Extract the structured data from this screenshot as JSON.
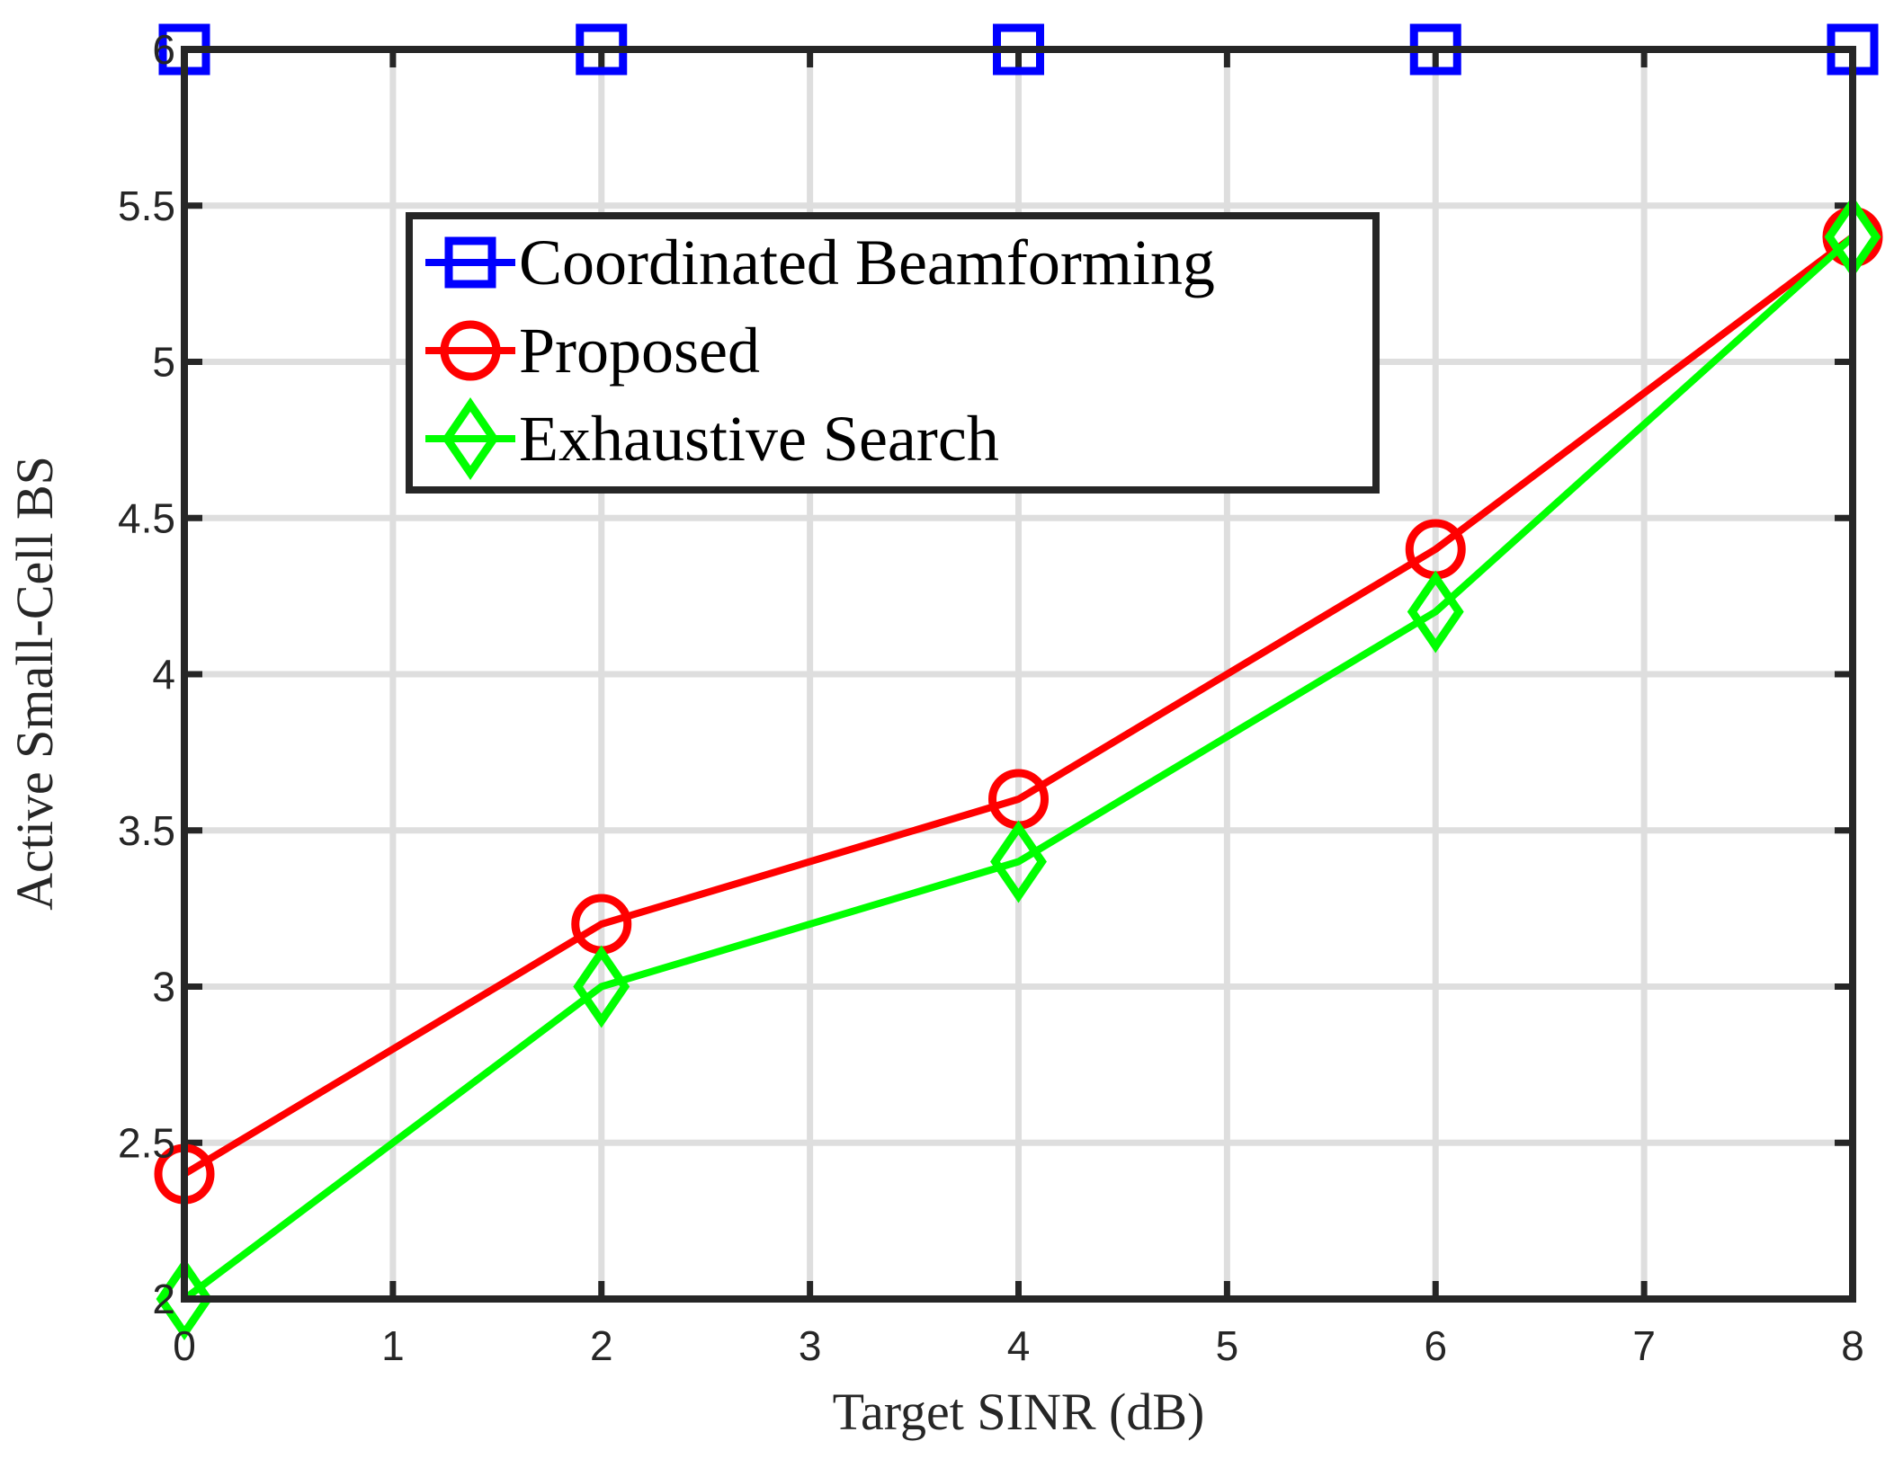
{
  "chart_data": {
    "type": "line",
    "title": "",
    "xlabel": "Target SINR (dB)",
    "ylabel": "Active Small-Cell BS",
    "xlim": [
      0,
      8
    ],
    "ylim": [
      2,
      6
    ],
    "xticks": [
      "0",
      "1",
      "2",
      "3",
      "4",
      "5",
      "6",
      "7",
      "8"
    ],
    "yticks": [
      "2",
      "2.5",
      "3",
      "3.5",
      "4",
      "4.5",
      "5",
      "5.5",
      "6"
    ],
    "grid": true,
    "legend_position": "top-center",
    "series": [
      {
        "name": "Coordinated Beamforming",
        "color": "#0000ff",
        "marker": "square",
        "x": [
          0,
          2,
          4,
          6,
          8
        ],
        "y": [
          6,
          6,
          6,
          6,
          6
        ]
      },
      {
        "name": "Proposed",
        "color": "#ff0000",
        "marker": "circle",
        "x": [
          0,
          2,
          4,
          6,
          8
        ],
        "y": [
          2.4,
          3.2,
          3.6,
          4.4,
          5.4
        ]
      },
      {
        "name": "Exhaustive Search",
        "color": "#00ff00",
        "marker": "diamond",
        "x": [
          0,
          2,
          4,
          6,
          8
        ],
        "y": [
          2.0,
          3.0,
          3.4,
          4.2,
          5.4
        ]
      }
    ]
  }
}
